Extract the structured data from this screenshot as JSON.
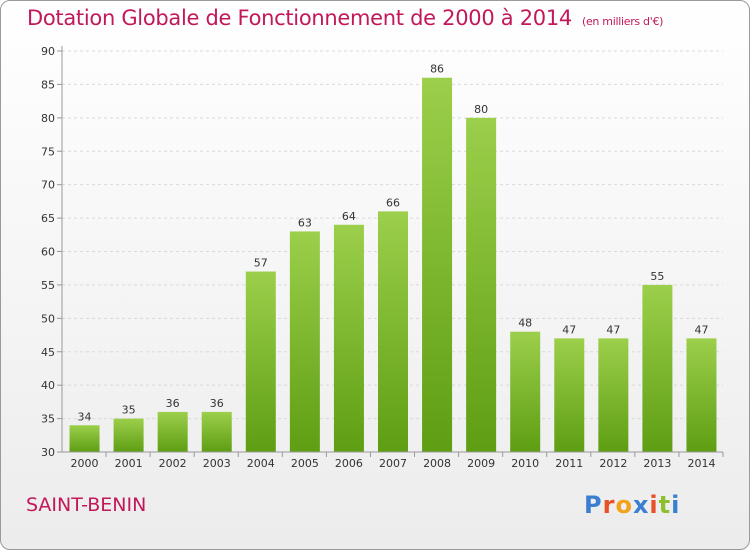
{
  "chart_data": {
    "type": "bar",
    "title": "Dotation Globale de Fonctionnement de 2000 à 2014",
    "subtitle": "(en milliers d'€)",
    "categories": [
      "2000",
      "2001",
      "2002",
      "2003",
      "2004",
      "2005",
      "2006",
      "2007",
      "2008",
      "2009",
      "2010",
      "2011",
      "2012",
      "2013",
      "2014"
    ],
    "values": [
      34,
      35,
      36,
      36,
      57,
      63,
      64,
      66,
      86,
      80,
      48,
      47,
      47,
      55,
      47
    ],
    "ylim": [
      30,
      90
    ],
    "yticks": [
      30,
      35,
      40,
      45,
      50,
      55,
      60,
      65,
      70,
      75,
      80,
      85,
      90
    ],
    "grid": true,
    "bar_color_top": "#9ccf4b",
    "bar_color_bottom": "#5e9e13"
  },
  "footer": {
    "city": "SAINT-BENIN",
    "logo_text": "Proxiti"
  },
  "colors": {
    "title": "#c2185b",
    "logo": [
      "#3b7fd1",
      "#e8502a",
      "#f2a31b",
      "#3b7fd1",
      "#e8502a",
      "#8dbf2e",
      "#3b7fd1"
    ]
  }
}
